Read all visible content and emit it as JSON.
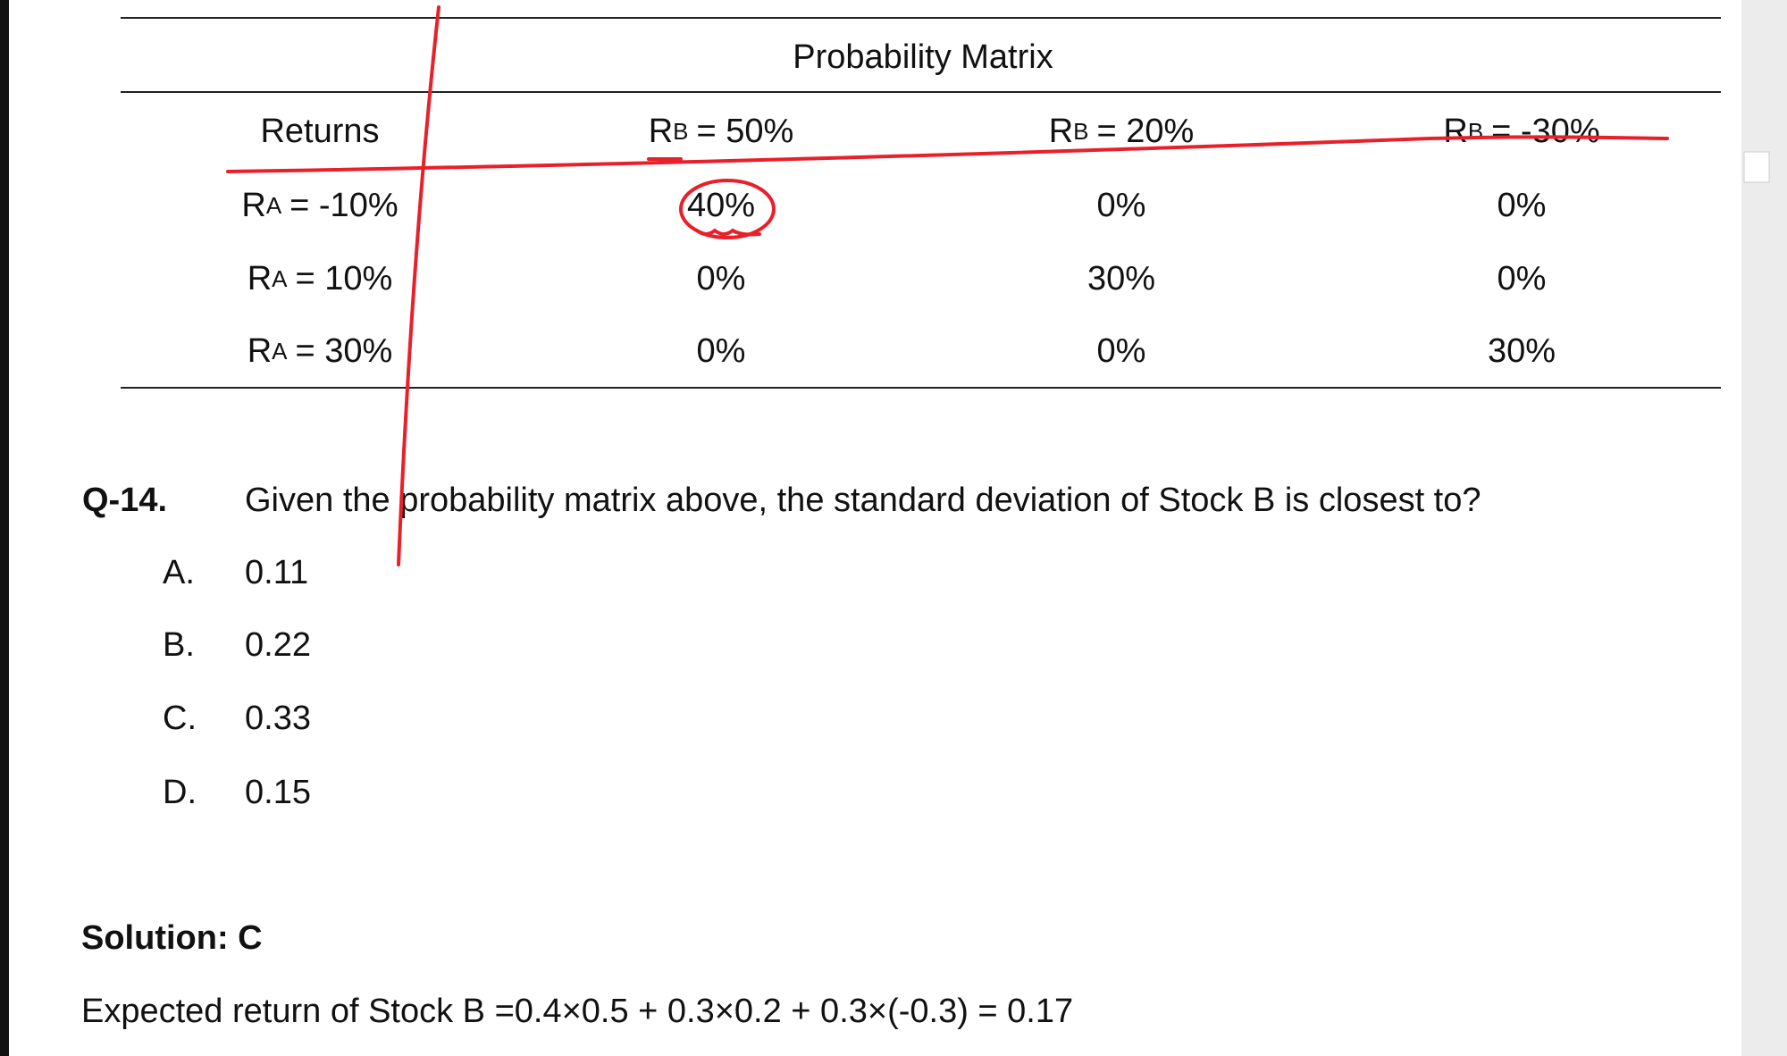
{
  "table": {
    "title": "Probability Matrix",
    "corner": "Returns",
    "columns": [
      {
        "symbol": "R",
        "subscript": "B",
        "value": "= 50%"
      },
      {
        "symbol": "R",
        "subscript": "B",
        "value": "= 20%"
      },
      {
        "symbol": "R",
        "subscript": "B",
        "value": "= -30%"
      }
    ],
    "rows": [
      {
        "symbol": "R",
        "subscript": "A",
        "value": "= -10%",
        "cells": [
          "40%",
          "0%",
          "0%"
        ]
      },
      {
        "symbol": "R",
        "subscript": "A",
        "value": "= 10%",
        "cells": [
          "0%",
          "30%",
          "0%"
        ]
      },
      {
        "symbol": "R",
        "subscript": "A",
        "value": "= 30%",
        "cells": [
          "0%",
          "0%",
          "30%"
        ]
      }
    ]
  },
  "question": {
    "number": "Q-14.",
    "text": "Given the probability matrix above, the standard deviation of Stock B is closest to?",
    "options": [
      {
        "letter": "A.",
        "text": "0.11"
      },
      {
        "letter": "B.",
        "text": "0.22"
      },
      {
        "letter": "C.",
        "text": "0.33"
      },
      {
        "letter": "D.",
        "text": "0.15"
      }
    ]
  },
  "solution": {
    "heading": "Solution: C",
    "text": "Expected return of Stock B =0.4×0.5 + 0.3×0.2 + 0.3×(-0.3) = 0.17"
  }
}
